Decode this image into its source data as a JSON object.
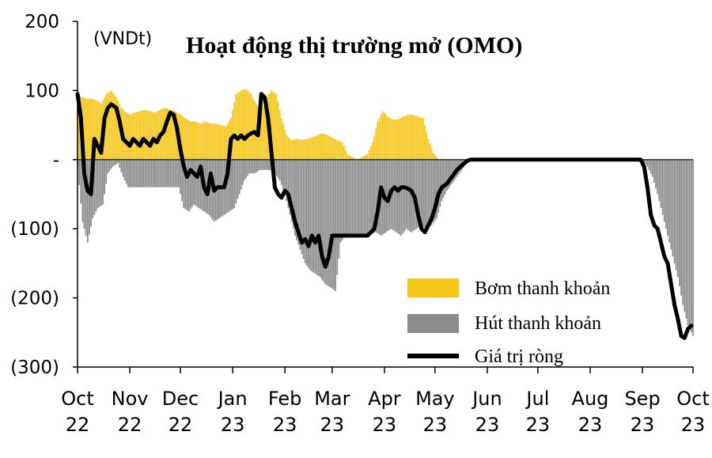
{
  "chart_data": {
    "type": "bar",
    "title": "Hoạt động thị trường mở (OMO)",
    "unit_label": "(VNDt)",
    "ylim": [
      -300,
      200
    ],
    "yticks": [
      {
        "value": 200,
        "label": "200"
      },
      {
        "value": 100,
        "label": "100"
      },
      {
        "value": 0,
        "label": "-"
      },
      {
        "value": -100,
        "label": "(100)"
      },
      {
        "value": -200,
        "label": "(200)"
      },
      {
        "value": -300,
        "label": "(300)"
      }
    ],
    "x_labels": [
      {
        "month": "Oct",
        "year": "22",
        "day": 0
      },
      {
        "month": "Nov",
        "year": "22",
        "day": 31
      },
      {
        "month": "Dec",
        "year": "22",
        "day": 61
      },
      {
        "month": "Jan",
        "year": "23",
        "day": 92
      },
      {
        "month": "Feb",
        "year": "23",
        "day": 123
      },
      {
        "month": "Mar",
        "year": "23",
        "day": 151
      },
      {
        "month": "Apr",
        "year": "23",
        "day": 182
      },
      {
        "month": "May",
        "year": "23",
        "day": 212
      },
      {
        "month": "Jun",
        "year": "23",
        "day": 243
      },
      {
        "month": "Jul",
        "year": "23",
        "day": 273
      },
      {
        "month": "Aug",
        "year": "23",
        "day": 304
      },
      {
        "month": "Sep",
        "year": "23",
        "day": 335
      },
      {
        "month": "Oct",
        "year": "23",
        "day": 365
      }
    ],
    "legend_position": "bottom-right",
    "series": [
      {
        "name": "Bơm thanh khoản",
        "color": "#F5C518",
        "type": "bar",
        "points": [
          [
            0,
            95
          ],
          [
            3,
            90
          ],
          [
            6,
            88
          ],
          [
            9,
            88
          ],
          [
            12,
            85
          ],
          [
            14,
            80
          ],
          [
            17,
            95
          ],
          [
            20,
            100
          ],
          [
            23,
            90
          ],
          [
            26,
            75
          ],
          [
            28,
            70
          ],
          [
            31,
            65
          ],
          [
            34,
            68
          ],
          [
            37,
            70
          ],
          [
            40,
            72
          ],
          [
            43,
            70
          ],
          [
            46,
            68
          ],
          [
            49,
            72
          ],
          [
            52,
            75
          ],
          [
            55,
            72
          ],
          [
            58,
            70
          ],
          [
            61,
            65
          ],
          [
            64,
            60
          ],
          [
            67,
            55
          ],
          [
            70,
            55
          ],
          [
            73,
            52
          ],
          [
            76,
            55
          ],
          [
            79,
            52
          ],
          [
            82,
            52
          ],
          [
            85,
            50
          ],
          [
            88,
            48
          ],
          [
            91,
            60
          ],
          [
            94,
            95
          ],
          [
            97,
            100
          ],
          [
            100,
            102
          ],
          [
            103,
            95
          ],
          [
            106,
            80
          ],
          [
            109,
            70
          ],
          [
            112,
            90
          ],
          [
            115,
            100
          ],
          [
            118,
            95
          ],
          [
            121,
            60
          ],
          [
            124,
            35
          ],
          [
            127,
            28
          ],
          [
            130,
            30
          ],
          [
            133,
            28
          ],
          [
            136,
            30
          ],
          [
            139,
            32
          ],
          [
            142,
            35
          ],
          [
            145,
            38
          ],
          [
            148,
            36
          ],
          [
            151,
            32
          ],
          [
            154,
            28
          ],
          [
            157,
            25
          ],
          [
            160,
            8
          ],
          [
            166,
            0
          ],
          [
            172,
            8
          ],
          [
            175,
            25
          ],
          [
            178,
            55
          ],
          [
            181,
            70
          ],
          [
            184,
            62
          ],
          [
            187,
            58
          ],
          [
            190,
            58
          ],
          [
            193,
            62
          ],
          [
            196,
            65
          ],
          [
            199,
            65
          ],
          [
            202,
            62
          ],
          [
            205,
            60
          ],
          [
            208,
            30
          ],
          [
            211,
            10
          ],
          [
            214,
            0
          ],
          [
            365,
            0
          ]
        ]
      },
      {
        "name": "Hút thanh khoản",
        "color": "#8C8C8C",
        "type": "bar",
        "points": [
          [
            0,
            -10
          ],
          [
            3,
            -90
          ],
          [
            6,
            -120
          ],
          [
            9,
            -85
          ],
          [
            12,
            -70
          ],
          [
            15,
            -65
          ],
          [
            18,
            -20
          ],
          [
            21,
            -10
          ],
          [
            24,
            -5
          ],
          [
            27,
            -25
          ],
          [
            30,
            -40
          ],
          [
            33,
            -40
          ],
          [
            36,
            -40
          ],
          [
            39,
            -40
          ],
          [
            42,
            -40
          ],
          [
            45,
            -40
          ],
          [
            48,
            -40
          ],
          [
            51,
            -40
          ],
          [
            54,
            -40
          ],
          [
            57,
            -40
          ],
          [
            60,
            -40
          ],
          [
            63,
            -70
          ],
          [
            66,
            -75
          ],
          [
            69,
            -65
          ],
          [
            72,
            -70
          ],
          [
            75,
            -75
          ],
          [
            78,
            -80
          ],
          [
            81,
            -90
          ],
          [
            84,
            -85
          ],
          [
            87,
            -80
          ],
          [
            90,
            -75
          ],
          [
            93,
            -70
          ],
          [
            96,
            -50
          ],
          [
            99,
            -30
          ],
          [
            102,
            -20
          ],
          [
            105,
            -20
          ],
          [
            108,
            -15
          ],
          [
            111,
            -15
          ],
          [
            114,
            -15
          ],
          [
            117,
            -20
          ],
          [
            120,
            -30
          ],
          [
            123,
            -50
          ],
          [
            126,
            -80
          ],
          [
            129,
            -110
          ],
          [
            132,
            -130
          ],
          [
            135,
            -150
          ],
          [
            138,
            -160
          ],
          [
            141,
            -165
          ],
          [
            144,
            -170
          ],
          [
            147,
            -180
          ],
          [
            150,
            -185
          ],
          [
            153,
            -190
          ],
          [
            156,
            -120
          ],
          [
            159,
            -110
          ],
          [
            162,
            -110
          ],
          [
            165,
            -110
          ],
          [
            168,
            -110
          ],
          [
            171,
            -110
          ],
          [
            174,
            -108
          ],
          [
            177,
            -105
          ],
          [
            180,
            -110
          ],
          [
            183,
            -105
          ],
          [
            186,
            -100
          ],
          [
            189,
            -105
          ],
          [
            192,
            -110
          ],
          [
            195,
            -100
          ],
          [
            198,
            -105
          ],
          [
            201,
            -100
          ],
          [
            204,
            -95
          ],
          [
            207,
            -100
          ],
          [
            210,
            -95
          ],
          [
            213,
            -85
          ],
          [
            216,
            -60
          ],
          [
            219,
            -45
          ],
          [
            222,
            -35
          ],
          [
            225,
            -25
          ],
          [
            228,
            -15
          ],
          [
            231,
            -5
          ],
          [
            234,
            0
          ],
          [
            335,
            0
          ],
          [
            338,
            -10
          ],
          [
            341,
            -25
          ],
          [
            344,
            -50
          ],
          [
            347,
            -80
          ],
          [
            350,
            -110
          ],
          [
            353,
            -140
          ],
          [
            356,
            -170
          ],
          [
            359,
            -210
          ],
          [
            362,
            -240
          ],
          [
            365,
            -255
          ]
        ]
      },
      {
        "name": "Giá trị ròng",
        "color": "#000000",
        "type": "line",
        "points": [
          [
            0,
            95
          ],
          [
            2,
            60
          ],
          [
            4,
            -20
          ],
          [
            6,
            -45
          ],
          [
            8,
            -50
          ],
          [
            10,
            30
          ],
          [
            12,
            20
          ],
          [
            14,
            10
          ],
          [
            16,
            60
          ],
          [
            18,
            75
          ],
          [
            20,
            80
          ],
          [
            23,
            75
          ],
          [
            25,
            55
          ],
          [
            27,
            30
          ],
          [
            29,
            25
          ],
          [
            31,
            20
          ],
          [
            33,
            30
          ],
          [
            35,
            25
          ],
          [
            37,
            20
          ],
          [
            39,
            30
          ],
          [
            41,
            25
          ],
          [
            43,
            20
          ],
          [
            45,
            30
          ],
          [
            47,
            25
          ],
          [
            49,
            35
          ],
          [
            51,
            40
          ],
          [
            53,
            55
          ],
          [
            55,
            68
          ],
          [
            57,
            65
          ],
          [
            59,
            45
          ],
          [
            61,
            15
          ],
          [
            63,
            -10
          ],
          [
            65,
            -25
          ],
          [
            67,
            -15
          ],
          [
            69,
            -20
          ],
          [
            71,
            -25
          ],
          [
            73,
            -10
          ],
          [
            75,
            -40
          ],
          [
            77,
            -50
          ],
          [
            79,
            -20
          ],
          [
            81,
            -45
          ],
          [
            83,
            -40
          ],
          [
            85,
            -40
          ],
          [
            87,
            -40
          ],
          [
            89,
            -20
          ],
          [
            91,
            30
          ],
          [
            93,
            35
          ],
          [
            95,
            30
          ],
          [
            97,
            35
          ],
          [
            99,
            30
          ],
          [
            101,
            35
          ],
          [
            103,
            38
          ],
          [
            105,
            40
          ],
          [
            107,
            35
          ],
          [
            109,
            95
          ],
          [
            111,
            90
          ],
          [
            113,
            60
          ],
          [
            115,
            10
          ],
          [
            117,
            -40
          ],
          [
            119,
            -50
          ],
          [
            121,
            -55
          ],
          [
            123,
            -45
          ],
          [
            125,
            -50
          ],
          [
            127,
            -70
          ],
          [
            129,
            -90
          ],
          [
            131,
            -105
          ],
          [
            133,
            -120
          ],
          [
            135,
            -115
          ],
          [
            137,
            -125
          ],
          [
            139,
            -110
          ],
          [
            141,
            -120
          ],
          [
            143,
            -110
          ],
          [
            145,
            -140
          ],
          [
            147,
            -155
          ],
          [
            149,
            -140
          ],
          [
            151,
            -110
          ],
          [
            154,
            -110
          ],
          [
            160,
            -110
          ],
          [
            166,
            -110
          ],
          [
            172,
            -110
          ],
          [
            176,
            -100
          ],
          [
            178,
            -75
          ],
          [
            180,
            -40
          ],
          [
            182,
            -55
          ],
          [
            184,
            -60
          ],
          [
            186,
            -45
          ],
          [
            188,
            -40
          ],
          [
            190,
            -45
          ],
          [
            192,
            -40
          ],
          [
            194,
            -40
          ],
          [
            196,
            -42
          ],
          [
            198,
            -45
          ],
          [
            200,
            -55
          ],
          [
            202,
            -80
          ],
          [
            204,
            -100
          ],
          [
            206,
            -105
          ],
          [
            208,
            -95
          ],
          [
            210,
            -85
          ],
          [
            212,
            -70
          ],
          [
            214,
            -50
          ],
          [
            216,
            -40
          ],
          [
            219,
            -35
          ],
          [
            222,
            -25
          ],
          [
            225,
            -15
          ],
          [
            228,
            -8
          ],
          [
            231,
            -2
          ],
          [
            233,
            0
          ],
          [
            334,
            0
          ],
          [
            336,
            -10
          ],
          [
            338,
            -40
          ],
          [
            340,
            -80
          ],
          [
            342,
            -95
          ],
          [
            344,
            -100
          ],
          [
            346,
            -120
          ],
          [
            348,
            -140
          ],
          [
            350,
            -150
          ],
          [
            352,
            -180
          ],
          [
            354,
            -210
          ],
          [
            356,
            -230
          ],
          [
            358,
            -255
          ],
          [
            360,
            -258
          ],
          [
            362,
            -245
          ],
          [
            364,
            -240
          ]
        ]
      }
    ]
  }
}
